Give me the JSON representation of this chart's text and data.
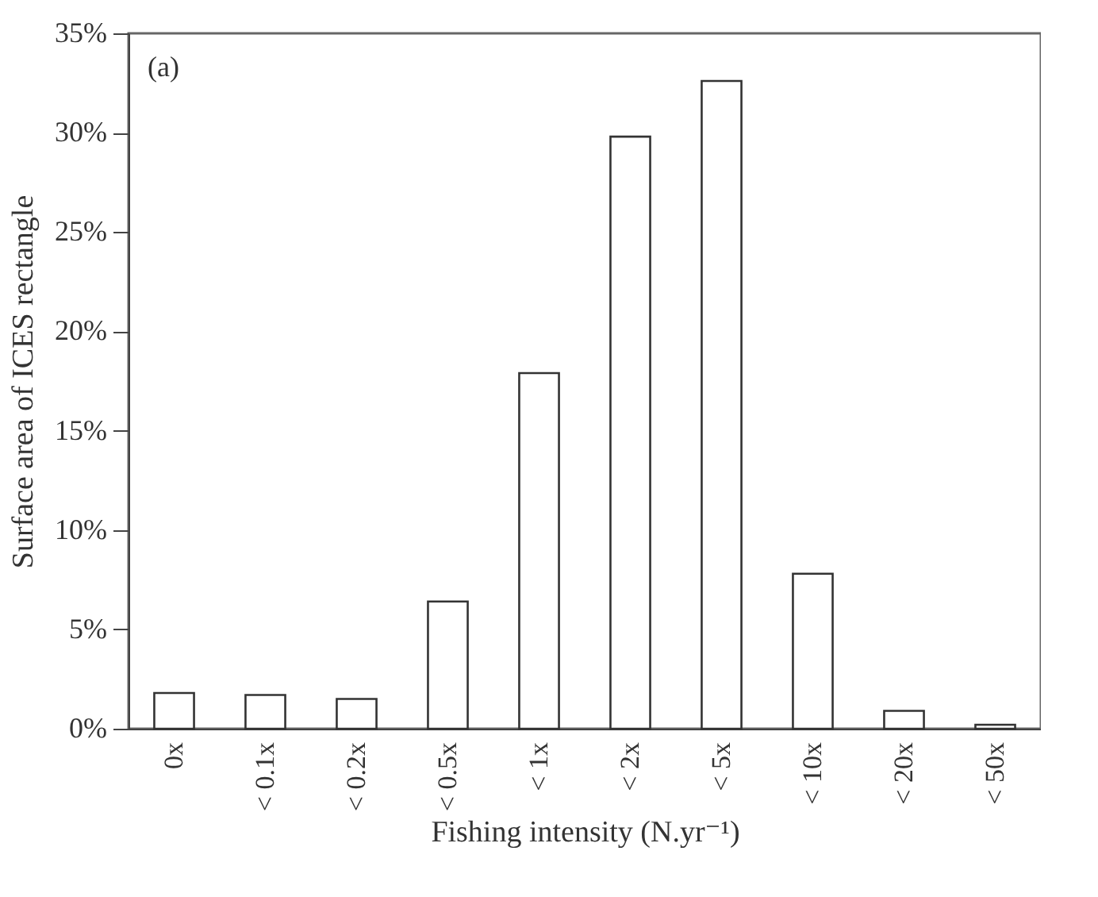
{
  "chart_data": {
    "type": "bar",
    "categories": [
      "0x",
      "< 0.1x",
      "< 0.2x",
      "< 0.5x",
      "< 1x",
      "< 2x",
      "< 5x",
      "< 10x",
      "< 20x",
      "< 50x"
    ],
    "values": [
      1.8,
      1.7,
      1.5,
      6.4,
      17.9,
      29.8,
      32.6,
      7.8,
      0.9,
      0.2
    ],
    "color": "#ffffff",
    "xlabel": "Fishing intensity (N.yr⁻¹)",
    "ylabel": "Surface area of ICES rectangle",
    "ylim": [
      0,
      35
    ],
    "yticks": [
      {
        "value": 0,
        "label": "0%"
      },
      {
        "value": 5,
        "label": "5%"
      },
      {
        "value": 10,
        "label": "10%"
      },
      {
        "value": 15,
        "label": "15%"
      },
      {
        "value": 20,
        "label": "20%"
      },
      {
        "value": 25,
        "label": "25%"
      },
      {
        "value": 30,
        "label": "30%"
      },
      {
        "value": 35,
        "label": "35%"
      }
    ],
    "annotations": [
      "(a)"
    ],
    "grid": false,
    "legend": false
  }
}
